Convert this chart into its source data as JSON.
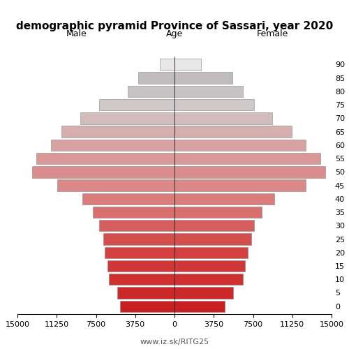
{
  "title": "demographic pyramid Province of Sassari, year 2020",
  "male_label": "Male",
  "female_label": "Female",
  "age_label": "Age",
  "footer": "www.iz.sk/RITG25",
  "age_groups": [
    0,
    5,
    10,
    15,
    20,
    25,
    30,
    35,
    40,
    45,
    50,
    55,
    60,
    65,
    70,
    75,
    80,
    85,
    90
  ],
  "male_values": [
    5200,
    5500,
    6300,
    6400,
    6700,
    6800,
    7200,
    7800,
    8800,
    11200,
    13600,
    13200,
    11800,
    10800,
    9000,
    7200,
    4500,
    3500,
    1400
  ],
  "female_values": [
    4800,
    5600,
    6500,
    6700,
    7000,
    7300,
    7600,
    8300,
    9500,
    12500,
    14400,
    13900,
    12500,
    11200,
    9300,
    7600,
    6500,
    5500,
    2500
  ],
  "xlim": 15000,
  "xticks": [
    15000,
    11250,
    7500,
    3750,
    0,
    3750,
    7500,
    11250,
    15000
  ],
  "xtick_labels": [
    "15000",
    "11250",
    "7500",
    "3750",
    "0",
    "3750",
    "7500",
    "11250",
    "15000"
  ],
  "bar_height": 0.85,
  "background_color": "#ffffff",
  "edgecolor": "#888888",
  "edge_linewidth": 0.4,
  "colors": {
    "0": "#c0242424",
    "5": "#c8302424",
    "10": "#cd383838",
    "15": "#d0404040",
    "20": "#d2484848",
    "25": "#d4545454",
    "30": "#d6606060",
    "35": "#d8707070",
    "40": "#da7c7c7c",
    "45": "#db888888",
    "50": "#db8c8c8c",
    "55": "#da989898",
    "60": "#d8a4a4a4",
    "65": "#d5b0b0b0",
    "70": "#d2bcbcbc",
    "75": "#cec8c8c8",
    "80": "#c8c4c4c4",
    "85": "#c0bcbcbc",
    "90": "#e8e8e8e8"
  },
  "male_colors": [
    "#c82020",
    "#cc2828",
    "#ce3030",
    "#d03838",
    "#d24040",
    "#d44e4e",
    "#d65e5e",
    "#d86e6e",
    "#da7c7c",
    "#db8888",
    "#db8c8c",
    "#da9898",
    "#d8a2a2",
    "#d5aeae",
    "#d2bcbc",
    "#cec8c8",
    "#c8c4c4",
    "#c0bcbc",
    "#e8e8e8"
  ],
  "female_colors": [
    "#c82020",
    "#cc2828",
    "#ce3030",
    "#d03838",
    "#d24040",
    "#d44e4e",
    "#d65e5e",
    "#d86e6e",
    "#da7c7c",
    "#db8888",
    "#db8c8c",
    "#da9898",
    "#d8a2a2",
    "#d5aeae",
    "#d2bcbc",
    "#cec8c8",
    "#c8c4c4",
    "#c0bcbc",
    "#e8e8e8"
  ],
  "title_fontsize": 11,
  "label_fontsize": 9,
  "tick_fontsize": 8,
  "footer_fontsize": 8,
  "footer_color": "#555555"
}
